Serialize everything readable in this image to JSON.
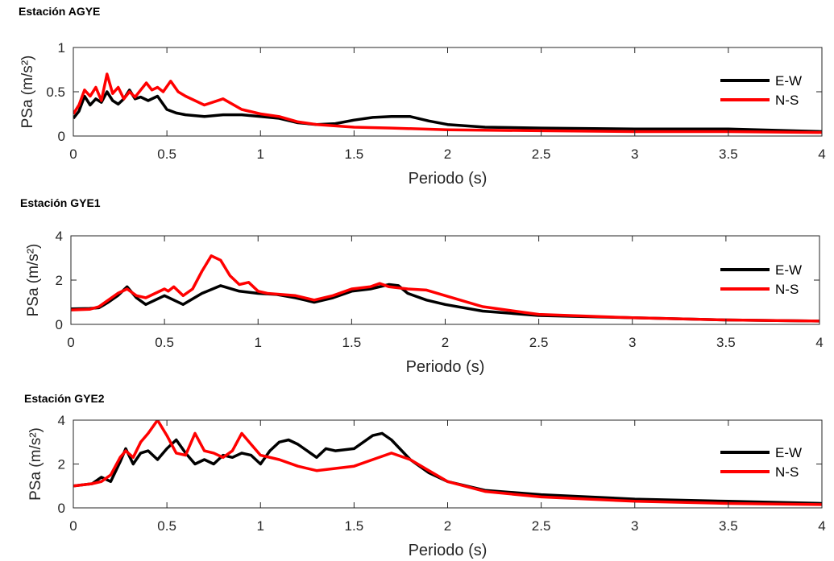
{
  "chart_data": [
    {
      "type": "line",
      "title": "Estación AGYE",
      "xlabel": "Periodo (s)",
      "ylabel": "PSa (m/s²)",
      "xlim": [
        0,
        4
      ],
      "ylim": [
        0,
        1
      ],
      "xticks": [
        "0",
        "0.5",
        "1",
        "1.5",
        "2",
        "2.5",
        "3",
        "3.5",
        "4"
      ],
      "yticks": [
        "0",
        "0.5",
        "1"
      ],
      "legend": "right",
      "series": [
        {
          "name": "E-W",
          "color": "#000000",
          "x": [
            0,
            0.03,
            0.06,
            0.09,
            0.12,
            0.15,
            0.18,
            0.21,
            0.24,
            0.27,
            0.3,
            0.33,
            0.36,
            0.4,
            0.45,
            0.5,
            0.55,
            0.6,
            0.7,
            0.8,
            0.9,
            1.0,
            1.1,
            1.2,
            1.3,
            1.4,
            1.5,
            1.6,
            1.7,
            1.8,
            1.9,
            2.0,
            2.2,
            2.5,
            3.0,
            3.5,
            4.0
          ],
          "y": [
            0.2,
            0.28,
            0.45,
            0.35,
            0.42,
            0.38,
            0.5,
            0.4,
            0.36,
            0.42,
            0.52,
            0.42,
            0.44,
            0.4,
            0.45,
            0.3,
            0.26,
            0.24,
            0.22,
            0.24,
            0.24,
            0.22,
            0.2,
            0.15,
            0.13,
            0.14,
            0.18,
            0.21,
            0.22,
            0.22,
            0.17,
            0.13,
            0.1,
            0.09,
            0.08,
            0.08,
            0.05
          ]
        },
        {
          "name": "N-S",
          "color": "#ff0000",
          "x": [
            0,
            0.03,
            0.06,
            0.09,
            0.12,
            0.15,
            0.18,
            0.21,
            0.24,
            0.27,
            0.3,
            0.33,
            0.36,
            0.39,
            0.42,
            0.45,
            0.48,
            0.52,
            0.56,
            0.6,
            0.7,
            0.8,
            0.9,
            1.0,
            1.1,
            1.2,
            1.3,
            1.5,
            1.7,
            2.0,
            2.5,
            3.0,
            3.5,
            4.0
          ],
          "y": [
            0.25,
            0.35,
            0.52,
            0.45,
            0.55,
            0.4,
            0.7,
            0.48,
            0.55,
            0.42,
            0.5,
            0.44,
            0.52,
            0.6,
            0.52,
            0.55,
            0.5,
            0.62,
            0.5,
            0.45,
            0.35,
            0.42,
            0.3,
            0.25,
            0.22,
            0.16,
            0.13,
            0.1,
            0.09,
            0.07,
            0.06,
            0.05,
            0.05,
            0.04
          ]
        }
      ]
    },
    {
      "type": "line",
      "title": "Estación GYE1",
      "xlabel": "Periodo (s)",
      "ylabel": "PSa (m/s²)",
      "xlim": [
        0,
        4
      ],
      "ylim": [
        0,
        4
      ],
      "xticks": [
        "0",
        "0.5",
        "1",
        "1.5",
        "2",
        "2.5",
        "3",
        "3.5",
        "4"
      ],
      "yticks": [
        "0",
        "2",
        "4"
      ],
      "legend": "right",
      "series": [
        {
          "name": "E-W",
          "color": "#000000",
          "x": [
            0,
            0.1,
            0.15,
            0.2,
            0.25,
            0.3,
            0.35,
            0.4,
            0.45,
            0.5,
            0.55,
            0.6,
            0.7,
            0.8,
            0.9,
            1.0,
            1.1,
            1.2,
            1.3,
            1.4,
            1.5,
            1.6,
            1.7,
            1.75,
            1.8,
            1.9,
            2.0,
            2.2,
            2.5,
            3.0,
            3.5,
            4.0
          ],
          "y": [
            0.7,
            0.72,
            0.75,
            1.0,
            1.3,
            1.7,
            1.2,
            0.9,
            1.1,
            1.3,
            1.1,
            0.9,
            1.4,
            1.75,
            1.5,
            1.4,
            1.35,
            1.2,
            1.0,
            1.2,
            1.5,
            1.6,
            1.8,
            1.75,
            1.4,
            1.1,
            0.9,
            0.6,
            0.4,
            0.3,
            0.2,
            0.15
          ]
        },
        {
          "name": "N-S",
          "color": "#ff0000",
          "x": [
            0,
            0.1,
            0.15,
            0.2,
            0.25,
            0.3,
            0.35,
            0.4,
            0.45,
            0.5,
            0.52,
            0.55,
            0.6,
            0.65,
            0.7,
            0.75,
            0.8,
            0.85,
            0.9,
            0.95,
            1.0,
            1.05,
            1.2,
            1.3,
            1.4,
            1.5,
            1.6,
            1.65,
            1.7,
            1.8,
            1.9,
            2.0,
            2.2,
            2.5,
            3.0,
            3.5,
            4.0
          ],
          "y": [
            0.65,
            0.68,
            0.8,
            1.1,
            1.4,
            1.6,
            1.3,
            1.2,
            1.4,
            1.6,
            1.5,
            1.7,
            1.3,
            1.6,
            2.4,
            3.1,
            2.9,
            2.2,
            1.8,
            1.9,
            1.5,
            1.4,
            1.3,
            1.1,
            1.3,
            1.6,
            1.7,
            1.85,
            1.7,
            1.6,
            1.55,
            1.3,
            0.8,
            0.45,
            0.3,
            0.2,
            0.15
          ]
        }
      ]
    },
    {
      "type": "line",
      "title": "Estación GYE2",
      "xlabel": "Periodo (s)",
      "ylabel": "PSa (m/s²)",
      "xlim": [
        0,
        4
      ],
      "ylim": [
        0,
        4
      ],
      "xticks": [
        "0",
        "0.5",
        "1",
        "1.5",
        "2",
        "2.5",
        "3",
        "3.5",
        "4"
      ],
      "yticks": [
        "0",
        "2",
        "4"
      ],
      "legend": "right",
      "series": [
        {
          "name": "E-W",
          "color": "#000000",
          "x": [
            0,
            0.1,
            0.15,
            0.2,
            0.25,
            0.28,
            0.32,
            0.36,
            0.4,
            0.45,
            0.5,
            0.55,
            0.6,
            0.65,
            0.7,
            0.75,
            0.8,
            0.85,
            0.9,
            0.95,
            1.0,
            1.05,
            1.1,
            1.15,
            1.2,
            1.3,
            1.35,
            1.4,
            1.5,
            1.6,
            1.65,
            1.7,
            1.8,
            1.9,
            2.0,
            2.2,
            2.5,
            3.0,
            3.5,
            4.0
          ],
          "y": [
            1.0,
            1.1,
            1.4,
            1.2,
            2.1,
            2.7,
            2.0,
            2.5,
            2.6,
            2.2,
            2.7,
            3.1,
            2.5,
            2.0,
            2.2,
            2.0,
            2.4,
            2.3,
            2.5,
            2.4,
            2.0,
            2.6,
            3.0,
            3.1,
            2.9,
            2.3,
            2.7,
            2.6,
            2.7,
            3.3,
            3.4,
            3.1,
            2.2,
            1.6,
            1.2,
            0.8,
            0.6,
            0.4,
            0.3,
            0.2
          ]
        },
        {
          "name": "N-S",
          "color": "#ff0000",
          "x": [
            0,
            0.1,
            0.15,
            0.2,
            0.25,
            0.28,
            0.32,
            0.36,
            0.4,
            0.45,
            0.5,
            0.55,
            0.6,
            0.65,
            0.7,
            0.75,
            0.8,
            0.85,
            0.9,
            0.95,
            1.0,
            1.1,
            1.2,
            1.3,
            1.4,
            1.5,
            1.6,
            1.7,
            1.8,
            1.9,
            2.0,
            2.2,
            2.5,
            3.0,
            3.5,
            4.0
          ],
          "y": [
            1.0,
            1.1,
            1.2,
            1.5,
            2.3,
            2.6,
            2.3,
            3.0,
            3.4,
            4.0,
            3.3,
            2.5,
            2.4,
            3.4,
            2.6,
            2.5,
            2.3,
            2.6,
            3.4,
            2.9,
            2.4,
            2.2,
            1.9,
            1.7,
            1.8,
            1.9,
            2.2,
            2.5,
            2.2,
            1.7,
            1.2,
            0.75,
            0.5,
            0.3,
            0.2,
            0.15
          ]
        }
      ]
    }
  ]
}
